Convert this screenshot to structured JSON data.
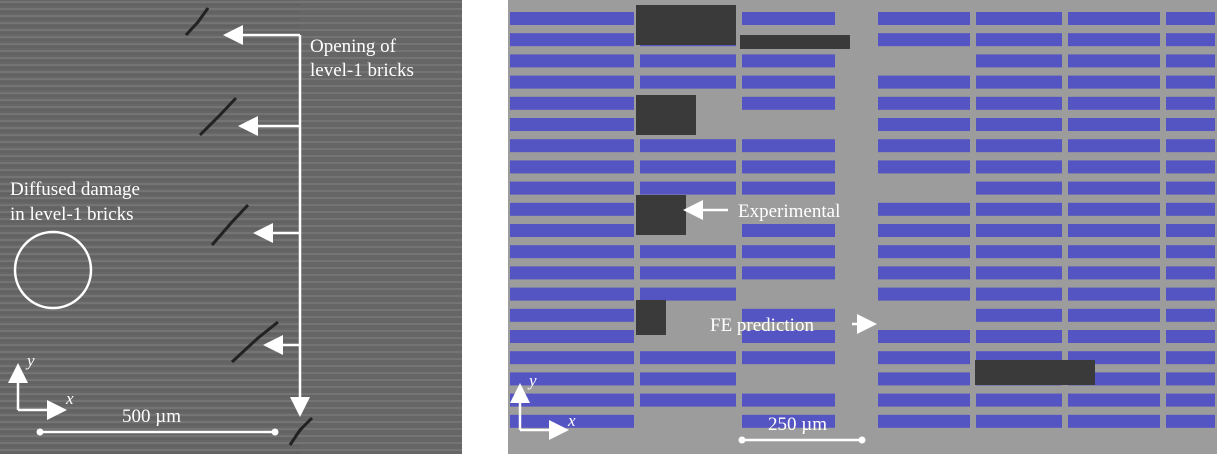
{
  "left_panel": {
    "opening_label": [
      "Opening of",
      "level-1 bricks"
    ],
    "damage_label": [
      "Diffused damage",
      "in level-1 bricks"
    ],
    "axis_y": "y",
    "axis_x": "x",
    "scale_bar": "500 µm"
  },
  "right_panel": {
    "experimental_label": "Experimental",
    "fe_label": "FE prediction",
    "axis_y": "y",
    "axis_x": "x",
    "scale_bar": "250 µm"
  }
}
